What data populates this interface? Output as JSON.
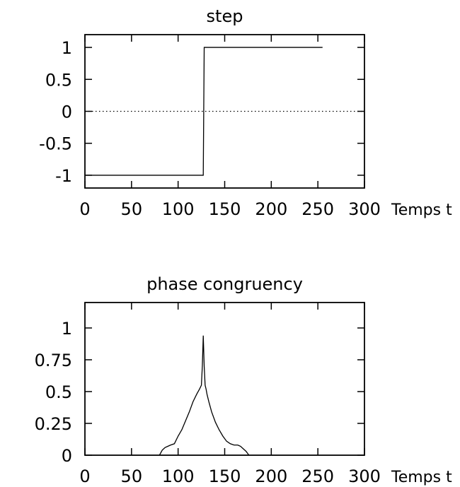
{
  "chart_data": [
    {
      "type": "line",
      "title": "step",
      "xlabel": "Temps t",
      "ylabel": "",
      "xlim": [
        0,
        300
      ],
      "ylim": [
        -1.2,
        1.2
      ],
      "xticks": [
        0,
        50,
        100,
        150,
        200,
        250,
        300
      ],
      "yticks": [
        -1,
        -0.5,
        0,
        0.5,
        1
      ],
      "xtick_labels": [
        "0",
        "50",
        "100",
        "150",
        "200",
        "250",
        "300"
      ],
      "ytick_labels": [
        "-1",
        "-0.5",
        "0",
        "0.5",
        "1"
      ],
      "zero_line": true,
      "series": [
        {
          "x": [
            1,
            127,
            128,
            255
          ],
          "y": [
            -1,
            -1,
            1,
            1
          ]
        }
      ]
    },
    {
      "type": "line",
      "title": "phase congruency",
      "xlabel": "Temps t",
      "ylabel": "",
      "xlim": [
        0,
        300
      ],
      "ylim": [
        0,
        1.2
      ],
      "xticks": [
        0,
        50,
        100,
        150,
        200,
        250,
        300
      ],
      "yticks": [
        0,
        0.25,
        0.5,
        0.75,
        1
      ],
      "xtick_labels": [
        "0",
        "50",
        "100",
        "150",
        "200",
        "250",
        "300"
      ],
      "ytick_labels": [
        "0",
        "0.25",
        "0.5",
        "0.75",
        "1"
      ],
      "zero_line": false,
      "series": [
        {
          "x": [
            80,
            83,
            86,
            89,
            92,
            96,
            100,
            104,
            108,
            112,
            116,
            120,
            123,
            125,
            126,
            127,
            128,
            129,
            130,
            131,
            133,
            136,
            140,
            144,
            148,
            152,
            156,
            160,
            164,
            167,
            170,
            173,
            176
          ],
          "y": [
            0.0,
            0.04,
            0.06,
            0.07,
            0.08,
            0.09,
            0.15,
            0.2,
            0.27,
            0.34,
            0.42,
            0.48,
            0.52,
            0.55,
            0.7,
            0.94,
            0.7,
            0.55,
            0.52,
            0.48,
            0.42,
            0.34,
            0.26,
            0.2,
            0.15,
            0.11,
            0.09,
            0.08,
            0.08,
            0.07,
            0.05,
            0.03,
            0.0
          ]
        }
      ]
    }
  ]
}
